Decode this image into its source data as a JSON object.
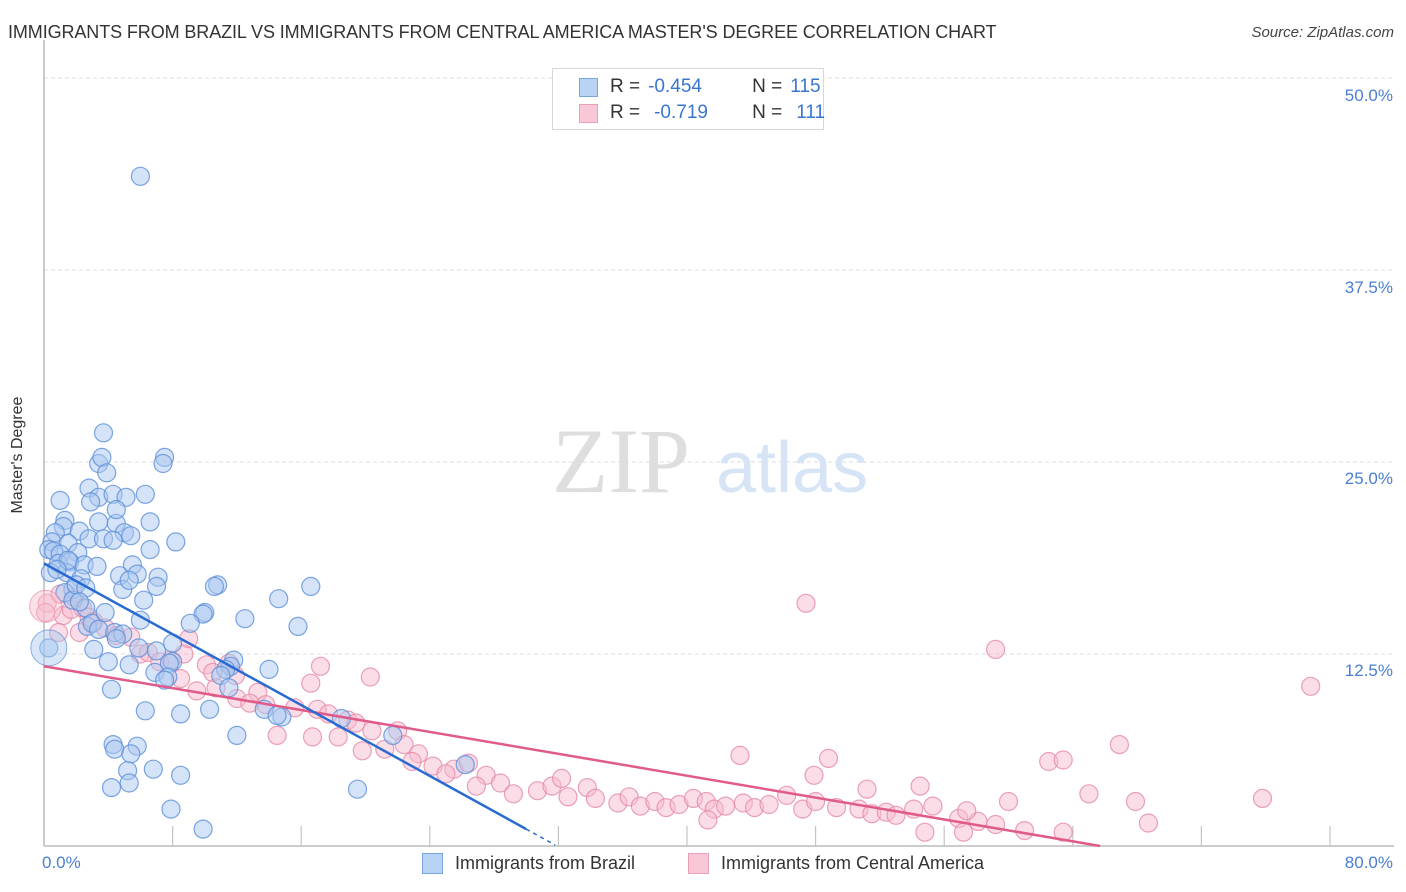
{
  "header": {
    "title": "IMMIGRANTS FROM BRAZIL VS IMMIGRANTS FROM CENTRAL AMERICA MASTER'S DEGREE CORRELATION CHART",
    "source": "Source: ZipAtlas.com"
  },
  "watermark": {
    "zip": "ZIP",
    "atlas": "atlas"
  },
  "legend": {
    "rows": [
      {
        "r_label": "R =",
        "r_value": "-0.454",
        "n_label": "N =",
        "n_value": "115",
        "color": "#b8d3f4"
      },
      {
        "r_label": "R =",
        "r_value": "-0.719",
        "n_label": "N =",
        "n_value": "111",
        "color": "#f8c8d6"
      }
    ]
  },
  "axes": {
    "ylabel": "Master's Degree",
    "yticks": [
      "50.0%",
      "37.5%",
      "25.0%",
      "12.5%"
    ],
    "xticks": {
      "min": "0.0%",
      "max": "80.0%"
    }
  },
  "bottom_legend": [
    {
      "label": "Immigrants from Brazil",
      "color": "#b8d3f4"
    },
    {
      "label": "Immigrants from Central America",
      "color": "#f8c8d6"
    }
  ],
  "colors": {
    "blue_fill": "#a9c8f0",
    "blue_stroke": "#5b8fdb",
    "blue_line": "#2a6bd1",
    "pink_fill": "#f6bccd",
    "pink_stroke": "#e68aa8",
    "pink_line": "#e05a8a",
    "tick_label": "#4a7fd1"
  },
  "chart_data": {
    "type": "scatter",
    "title": "IMMIGRANTS FROM BRAZIL VS IMMIGRANTS FROM CENTRAL AMERICA MASTER'S DEGREE CORRELATION CHART",
    "xlabel": "",
    "ylabel": "Master's Degree",
    "xlim": [
      0,
      80
    ],
    "ylim": [
      0,
      50
    ],
    "x_tick_labels": [
      "0.0%",
      "80.0%"
    ],
    "y_tick_labels": [
      "12.5%",
      "25.0%",
      "37.5%",
      "50.0%"
    ],
    "grid": true,
    "legend_position": "top-center (stats) and bottom (series)",
    "series": [
      {
        "name": "Immigrants from Brazil",
        "R": -0.454,
        "N": 115,
        "trend": {
          "x0": 0,
          "y0": 18.4,
          "x1": 30.0,
          "y1": 1.1
        },
        "points": [
          [
            6.0,
            43.6
          ],
          [
            0.3,
            12.9
          ],
          [
            3.7,
            26.9
          ],
          [
            3.4,
            24.9
          ],
          [
            3.6,
            25.3
          ],
          [
            3.9,
            24.3
          ],
          [
            7.5,
            25.3
          ],
          [
            7.4,
            24.9
          ],
          [
            1.0,
            22.5
          ],
          [
            2.8,
            23.3
          ],
          [
            3.4,
            22.7
          ],
          [
            4.3,
            22.9
          ],
          [
            5.1,
            22.7
          ],
          [
            6.3,
            22.9
          ],
          [
            2.9,
            22.4
          ],
          [
            1.3,
            21.2
          ],
          [
            1.2,
            20.8
          ],
          [
            2.2,
            20.5
          ],
          [
            3.4,
            21.1
          ],
          [
            4.5,
            21.0
          ],
          [
            4.5,
            21.9
          ],
          [
            6.6,
            21.1
          ],
          [
            5.0,
            20.4
          ],
          [
            0.7,
            20.4
          ],
          [
            0.5,
            19.8
          ],
          [
            1.5,
            19.7
          ],
          [
            2.8,
            20.0
          ],
          [
            3.7,
            20.0
          ],
          [
            4.3,
            19.9
          ],
          [
            5.4,
            20.2
          ],
          [
            8.2,
            19.8
          ],
          [
            0.3,
            19.3
          ],
          [
            0.6,
            19.2
          ],
          [
            1.0,
            19.0
          ],
          [
            2.1,
            19.1
          ],
          [
            6.6,
            19.3
          ],
          [
            0.9,
            18.4
          ],
          [
            1.6,
            18.5
          ],
          [
            2.5,
            18.3
          ],
          [
            3.3,
            18.2
          ],
          [
            5.5,
            18.3
          ],
          [
            0.4,
            17.8
          ],
          [
            1.4,
            17.8
          ],
          [
            2.3,
            17.4
          ],
          [
            4.7,
            17.6
          ],
          [
            7.1,
            17.5
          ],
          [
            5.8,
            17.7
          ],
          [
            1.8,
            16.7
          ],
          [
            1.3,
            16.5
          ],
          [
            4.9,
            16.7
          ],
          [
            5.3,
            17.3
          ],
          [
            7.0,
            16.9
          ],
          [
            10.8,
            17.0
          ],
          [
            10.6,
            16.9
          ],
          [
            16.6,
            16.9
          ],
          [
            1.8,
            16.0
          ],
          [
            2.6,
            15.5
          ],
          [
            14.6,
            16.1
          ],
          [
            10.0,
            15.2
          ],
          [
            9.9,
            15.1
          ],
          [
            12.5,
            14.8
          ],
          [
            15.8,
            14.3
          ],
          [
            9.1,
            14.5
          ],
          [
            2.7,
            14.3
          ],
          [
            3.0,
            14.5
          ],
          [
            6.0,
            14.7
          ],
          [
            3.4,
            14.1
          ],
          [
            4.4,
            13.9
          ],
          [
            4.9,
            13.8
          ],
          [
            4.5,
            13.5
          ],
          [
            3.1,
            12.8
          ],
          [
            5.9,
            12.9
          ],
          [
            7.0,
            12.7
          ],
          [
            8.0,
            12.0
          ],
          [
            7.8,
            11.9
          ],
          [
            11.8,
            12.1
          ],
          [
            11.6,
            11.7
          ],
          [
            4.0,
            12.0
          ],
          [
            5.3,
            11.8
          ],
          [
            6.9,
            11.3
          ],
          [
            7.7,
            11.0
          ],
          [
            7.5,
            10.8
          ],
          [
            11.3,
            11.5
          ],
          [
            11.0,
            11.1
          ],
          [
            14.0,
            11.5
          ],
          [
            4.2,
            10.2
          ],
          [
            11.5,
            10.3
          ],
          [
            6.3,
            8.8
          ],
          [
            8.5,
            8.6
          ],
          [
            10.3,
            8.9
          ],
          [
            13.7,
            8.9
          ],
          [
            14.8,
            8.4
          ],
          [
            12.0,
            7.2
          ],
          [
            21.7,
            7.2
          ],
          [
            4.3,
            6.6
          ],
          [
            4.4,
            6.3
          ],
          [
            5.8,
            6.5
          ],
          [
            5.4,
            6.0
          ],
          [
            26.2,
            5.3
          ],
          [
            18.5,
            8.3
          ],
          [
            14.5,
            8.5
          ],
          [
            5.2,
            4.9
          ],
          [
            6.8,
            5.0
          ],
          [
            8.5,
            4.6
          ],
          [
            5.3,
            4.1
          ],
          [
            4.2,
            3.8
          ],
          [
            19.5,
            3.7
          ],
          [
            7.9,
            2.4
          ],
          [
            9.9,
            1.1
          ],
          [
            1.5,
            18.6
          ],
          [
            2.0,
            17.0
          ],
          [
            0.8,
            18.0
          ],
          [
            2.6,
            16.8
          ],
          [
            3.8,
            15.2
          ],
          [
            2.2,
            15.9
          ],
          [
            6.2,
            16.0
          ],
          [
            8.0,
            13.2
          ]
        ]
      },
      {
        "name": "Immigrants from Central America",
        "R": -0.719,
        "N": 111,
        "trend": {
          "x0": 0,
          "y0": 11.7,
          "x1": 65.7,
          "y1": 0
        },
        "points": [
          [
            0.2,
            15.8
          ],
          [
            0.1,
            15.2
          ],
          [
            1.2,
            15.0
          ],
          [
            1.7,
            15.4
          ],
          [
            2.4,
            15.5
          ],
          [
            2.8,
            14.9
          ],
          [
            3.1,
            14.6
          ],
          [
            3.8,
            14.2
          ],
          [
            1.0,
            16.4
          ],
          [
            1.9,
            16.2
          ],
          [
            0.9,
            13.9
          ],
          [
            2.2,
            13.9
          ],
          [
            4.5,
            13.7
          ],
          [
            5.4,
            13.6
          ],
          [
            6.0,
            12.5
          ],
          [
            6.5,
            12.6
          ],
          [
            7.2,
            12.0
          ],
          [
            7.9,
            12.1
          ],
          [
            8.7,
            12.5
          ],
          [
            9.0,
            13.5
          ],
          [
            10.1,
            11.8
          ],
          [
            10.5,
            11.3
          ],
          [
            11.5,
            11.9
          ],
          [
            11.9,
            11.1
          ],
          [
            8.5,
            10.9
          ],
          [
            9.5,
            10.1
          ],
          [
            10.7,
            10.3
          ],
          [
            12.0,
            9.6
          ],
          [
            13.3,
            10.0
          ],
          [
            13.8,
            9.2
          ],
          [
            15.6,
            9.0
          ],
          [
            16.6,
            10.6
          ],
          [
            17.2,
            11.7
          ],
          [
            20.3,
            11.0
          ],
          [
            17.0,
            8.9
          ],
          [
            17.7,
            8.6
          ],
          [
            18.3,
            7.1
          ],
          [
            14.5,
            7.2
          ],
          [
            16.7,
            7.1
          ],
          [
            12.8,
            9.3
          ],
          [
            18.9,
            8.2
          ],
          [
            19.4,
            8.0
          ],
          [
            20.4,
            7.5
          ],
          [
            22.0,
            7.5
          ],
          [
            21.2,
            6.3
          ],
          [
            22.4,
            6.6
          ],
          [
            23.3,
            6.0
          ],
          [
            24.2,
            5.2
          ],
          [
            19.8,
            6.2
          ],
          [
            22.9,
            5.5
          ],
          [
            25.5,
            5.0
          ],
          [
            26.4,
            5.4
          ],
          [
            27.5,
            4.6
          ],
          [
            25.0,
            4.7
          ],
          [
            28.4,
            4.1
          ],
          [
            29.2,
            3.4
          ],
          [
            26.9,
            3.9
          ],
          [
            30.7,
            3.6
          ],
          [
            31.6,
            3.9
          ],
          [
            32.6,
            3.2
          ],
          [
            32.2,
            4.4
          ],
          [
            33.8,
            3.8
          ],
          [
            34.3,
            3.1
          ],
          [
            35.7,
            2.8
          ],
          [
            36.4,
            3.2
          ],
          [
            37.1,
            2.6
          ],
          [
            38.0,
            2.9
          ],
          [
            38.7,
            2.5
          ],
          [
            39.5,
            2.7
          ],
          [
            40.4,
            3.1
          ],
          [
            41.2,
            2.9
          ],
          [
            41.7,
            2.4
          ],
          [
            42.4,
            2.6
          ],
          [
            43.5,
            2.8
          ],
          [
            44.2,
            2.5
          ],
          [
            45.1,
            2.7
          ],
          [
            46.2,
            3.3
          ],
          [
            47.2,
            2.4
          ],
          [
            48.0,
            2.9
          ],
          [
            49.3,
            2.5
          ],
          [
            50.7,
            2.4
          ],
          [
            51.5,
            2.1
          ],
          [
            52.4,
            2.2
          ],
          [
            53.0,
            2.0
          ],
          [
            54.1,
            2.4
          ],
          [
            55.3,
            2.6
          ],
          [
            56.9,
            1.8
          ],
          [
            58.1,
            1.6
          ],
          [
            43.3,
            5.9
          ],
          [
            47.9,
            4.6
          ],
          [
            48.8,
            5.7
          ],
          [
            51.2,
            3.7
          ],
          [
            54.5,
            3.9
          ],
          [
            57.4,
            2.3
          ],
          [
            59.2,
            1.4
          ],
          [
            60.0,
            2.9
          ],
          [
            62.5,
            5.5
          ],
          [
            63.4,
            5.6
          ],
          [
            65.0,
            3.4
          ],
          [
            66.9,
            6.6
          ],
          [
            67.9,
            2.9
          ],
          [
            68.7,
            1.5
          ],
          [
            75.8,
            3.1
          ],
          [
            78.8,
            10.4
          ],
          [
            59.2,
            12.8
          ],
          [
            47.4,
            15.8
          ],
          [
            61.0,
            1.0
          ],
          [
            57.2,
            0.9
          ],
          [
            54.8,
            0.9
          ],
          [
            63.4,
            0.9
          ],
          [
            41.3,
            1.7
          ]
        ]
      }
    ]
  }
}
